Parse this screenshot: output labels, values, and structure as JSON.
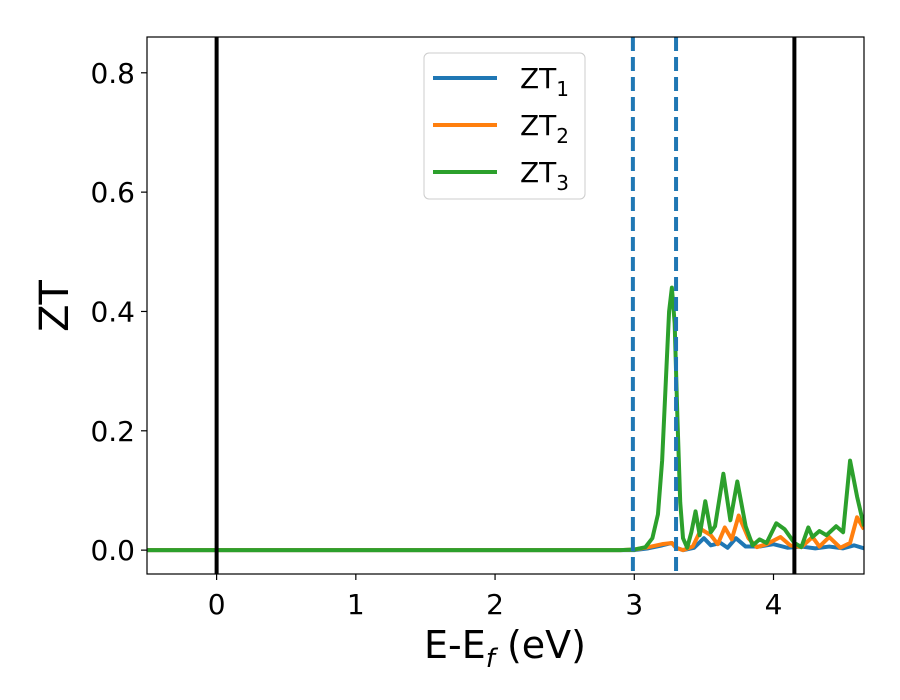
{
  "chart_data": {
    "type": "line",
    "xlabel_main": "E-E",
    "xlabel_sub": "f",
    "xlabel_unit": " (eV)",
    "ylabel": "ZT",
    "xlim": [
      -0.5,
      4.65
    ],
    "ylim": [
      -0.04,
      0.86
    ],
    "xticks": [
      0,
      1,
      2,
      3,
      4
    ],
    "xtick_labels": [
      "0",
      "1",
      "2",
      "3",
      "4"
    ],
    "yticks": [
      0.0,
      0.2,
      0.4,
      0.6,
      0.8
    ],
    "ytick_labels": [
      "0.0",
      "0.2",
      "0.4",
      "0.6",
      "0.8"
    ],
    "grid": false,
    "legend_position": "top-center",
    "vertical_lines": [
      {
        "x": 0.0,
        "style": "solid",
        "color": "#000000"
      },
      {
        "x": 4.15,
        "style": "solid",
        "color": "#000000"
      },
      {
        "x": 2.99,
        "style": "dashed",
        "color": "#1f77b4"
      },
      {
        "x": 3.3,
        "style": "dashed",
        "color": "#1f77b4"
      }
    ],
    "series": [
      {
        "name": "ZT",
        "sub": "1",
        "color": "#1f77b4",
        "points": [
          [
            -0.5,
            0.0
          ],
          [
            2.9,
            0.0
          ],
          [
            3.0,
            0.0
          ],
          [
            3.1,
            0.003
          ],
          [
            3.2,
            0.008
          ],
          [
            3.27,
            0.012
          ],
          [
            3.3,
            0.004
          ],
          [
            3.35,
            0.0
          ],
          [
            3.43,
            0.004
          ],
          [
            3.5,
            0.02
          ],
          [
            3.55,
            0.008
          ],
          [
            3.62,
            0.012
          ],
          [
            3.67,
            0.004
          ],
          [
            3.73,
            0.02
          ],
          [
            3.8,
            0.006
          ],
          [
            3.9,
            0.006
          ],
          [
            4.0,
            0.01
          ],
          [
            4.1,
            0.004
          ],
          [
            4.2,
            0.006
          ],
          [
            4.3,
            0.003
          ],
          [
            4.4,
            0.006
          ],
          [
            4.5,
            0.003
          ],
          [
            4.58,
            0.008
          ],
          [
            4.65,
            0.003
          ]
        ]
      },
      {
        "name": "ZT",
        "sub": "2",
        "color": "#ff7f0e",
        "points": [
          [
            -0.5,
            0.0
          ],
          [
            2.9,
            0.0
          ],
          [
            3.0,
            0.001
          ],
          [
            3.1,
            0.005
          ],
          [
            3.2,
            0.01
          ],
          [
            3.27,
            0.012
          ],
          [
            3.3,
            0.004
          ],
          [
            3.35,
            0.0
          ],
          [
            3.42,
            0.006
          ],
          [
            3.48,
            0.035
          ],
          [
            3.55,
            0.025
          ],
          [
            3.6,
            0.01
          ],
          [
            3.65,
            0.038
          ],
          [
            3.7,
            0.018
          ],
          [
            3.75,
            0.058
          ],
          [
            3.82,
            0.02
          ],
          [
            3.88,
            0.005
          ],
          [
            3.95,
            0.01
          ],
          [
            4.05,
            0.022
          ],
          [
            4.12,
            0.008
          ],
          [
            4.2,
            0.005
          ],
          [
            4.28,
            0.022
          ],
          [
            4.33,
            0.006
          ],
          [
            4.4,
            0.022
          ],
          [
            4.48,
            0.004
          ],
          [
            4.55,
            0.012
          ],
          [
            4.6,
            0.055
          ],
          [
            4.65,
            0.035
          ]
        ]
      },
      {
        "name": "ZT",
        "sub": "3",
        "color": "#2ca02c",
        "points": [
          [
            -0.5,
            0.0
          ],
          [
            2.9,
            0.0
          ],
          [
            3.0,
            0.001
          ],
          [
            3.08,
            0.005
          ],
          [
            3.13,
            0.02
          ],
          [
            3.17,
            0.06
          ],
          [
            3.2,
            0.15
          ],
          [
            3.23,
            0.3
          ],
          [
            3.25,
            0.4
          ],
          [
            3.27,
            0.44
          ],
          [
            3.29,
            0.38
          ],
          [
            3.31,
            0.22
          ],
          [
            3.33,
            0.08
          ],
          [
            3.35,
            0.02
          ],
          [
            3.38,
            0.004
          ],
          [
            3.41,
            0.03
          ],
          [
            3.44,
            0.065
          ],
          [
            3.47,
            0.025
          ],
          [
            3.51,
            0.082
          ],
          [
            3.55,
            0.03
          ],
          [
            3.58,
            0.04
          ],
          [
            3.64,
            0.128
          ],
          [
            3.69,
            0.05
          ],
          [
            3.74,
            0.115
          ],
          [
            3.8,
            0.04
          ],
          [
            3.85,
            0.008
          ],
          [
            3.9,
            0.018
          ],
          [
            3.95,
            0.012
          ],
          [
            4.02,
            0.045
          ],
          [
            4.08,
            0.035
          ],
          [
            4.15,
            0.012
          ],
          [
            4.2,
            0.005
          ],
          [
            4.25,
            0.038
          ],
          [
            4.28,
            0.022
          ],
          [
            4.33,
            0.032
          ],
          [
            4.38,
            0.025
          ],
          [
            4.45,
            0.04
          ],
          [
            4.5,
            0.03
          ],
          [
            4.55,
            0.15
          ],
          [
            4.6,
            0.09
          ],
          [
            4.65,
            0.04
          ]
        ]
      }
    ]
  }
}
